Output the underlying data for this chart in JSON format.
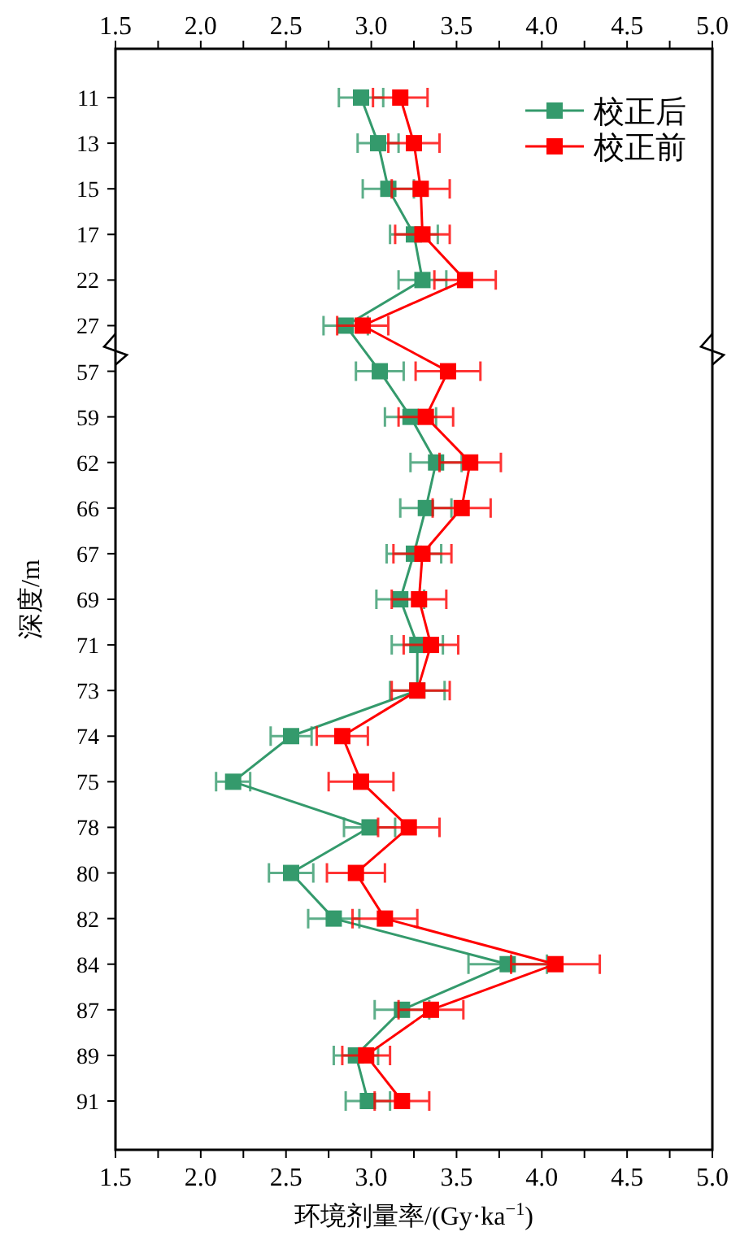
{
  "chart_data": {
    "type": "line",
    "orientation": "horizontal",
    "xlabel": "环境剂量率/(Gy·ka$^{−1}$)",
    "ylabel": "深度/m",
    "categories": [
      "11",
      "13",
      "15",
      "17",
      "22",
      "27",
      "57",
      "59",
      "62",
      "66",
      "67",
      "69",
      "71",
      "73",
      "74",
      "75",
      "78",
      "80",
      "82",
      "84",
      "87",
      "89",
      "91"
    ],
    "series": [
      {
        "name": "校正后",
        "color": "#349a6c",
        "values": [
          2.94,
          3.04,
          3.1,
          3.25,
          3.3,
          2.85,
          3.05,
          3.23,
          3.38,
          3.32,
          3.25,
          3.17,
          3.27,
          3.27,
          2.53,
          2.19,
          2.99,
          2.53,
          2.78,
          3.8,
          3.18,
          2.91,
          2.98
        ],
        "errors": [
          0.13,
          0.12,
          0.15,
          0.14,
          0.14,
          0.13,
          0.14,
          0.15,
          0.15,
          0.15,
          0.16,
          0.14,
          0.15,
          0.16,
          0.12,
          0.1,
          0.15,
          0.13,
          0.15,
          0.23,
          0.16,
          0.13,
          0.13
        ]
      },
      {
        "name": "校正前",
        "color": "#ff0000",
        "values": [
          3.17,
          3.25,
          3.29,
          3.3,
          3.55,
          2.95,
          3.45,
          3.32,
          3.58,
          3.53,
          3.3,
          3.28,
          3.35,
          3.27,
          2.83,
          2.94,
          3.22,
          2.91,
          3.08,
          4.08,
          3.35,
          2.97,
          3.18
        ],
        "errors": [
          0.16,
          0.15,
          0.17,
          0.16,
          0.18,
          0.15,
          0.19,
          0.16,
          0.18,
          0.17,
          0.17,
          0.16,
          0.16,
          [
            3.12,
            3.46
          ],
          0.15,
          0.19,
          0.18,
          0.17,
          0.19,
          0.26,
          0.19,
          0.14,
          0.16
        ]
      }
    ],
    "xlim": [
      1.5,
      5.0
    ],
    "xticks": [
      {
        "value": 1.5,
        "label": "1.5"
      },
      {
        "value": 1.75,
        "label": null
      },
      {
        "value": 2.0,
        "label": "2.0"
      },
      {
        "value": 2.25,
        "label": null
      },
      {
        "value": 2.5,
        "label": "2.5"
      },
      {
        "value": 2.75,
        "label": null
      },
      {
        "value": 3.0,
        "label": "3.0"
      },
      {
        "value": 3.25,
        "label": null
      },
      {
        "value": 3.5,
        "label": "3.5"
      },
      {
        "value": 3.75,
        "label": null
      },
      {
        "value": 4.0,
        "label": "4.0"
      },
      {
        "value": 4.25,
        "label": null
      },
      {
        "value": 4.5,
        "label": "4.5"
      },
      {
        "value": 4.75,
        "label": null
      },
      {
        "value": 5.0,
        "label": "5.0"
      }
    ],
    "x2lim": [
      1.5,
      5.0
    ],
    "x2ticks": [
      {
        "value": 1.5,
        "label": "1.5"
      },
      {
        "value": 1.75,
        "label": null
      },
      {
        "value": 2.0,
        "label": "2.0"
      },
      {
        "value": 2.25,
        "label": null
      },
      {
        "value": 2.5,
        "label": "2.5"
      },
      {
        "value": 2.75,
        "label": null
      },
      {
        "value": 3.0,
        "label": "3.0"
      },
      {
        "value": 3.25,
        "label": null
      },
      {
        "value": 3.5,
        "label": "3.5"
      },
      {
        "value": 3.75,
        "label": null
      },
      {
        "value": 4.0,
        "label": "4.0"
      },
      {
        "value": 4.25,
        "label": null
      },
      {
        "value": 4.5,
        "label": "4.5"
      },
      {
        "value": 4.75,
        "label": null
      },
      {
        "value": 5.0,
        "label": "5.0"
      }
    ],
    "marker": "square",
    "line_style": "solid",
    "legend": "top right",
    "grid": false
  }
}
